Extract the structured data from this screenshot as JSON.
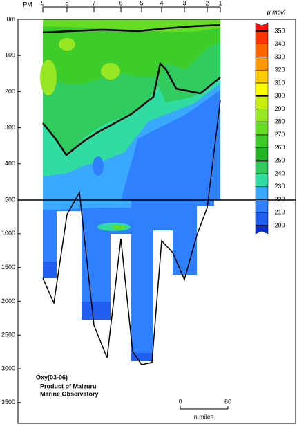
{
  "chart_data": {
    "type": "contour",
    "title": "Oxy(03-06)",
    "subtitle": [
      "Product of Maizuru",
      "Marine Observatory"
    ],
    "x_label": "PM",
    "categories": [
      "9",
      "8",
      "7",
      "6",
      "5",
      "4",
      "3",
      "2",
      "1"
    ],
    "ylim": [
      0,
      3500
    ],
    "yticks": [
      {
        "value": 0,
        "label": "0m"
      },
      100,
      200,
      300,
      400,
      500,
      1000,
      1500,
      2000,
      2500,
      3000,
      3500
    ],
    "colorbar": {
      "label": "μ mol/l",
      "levels": [
        200,
        210,
        220,
        230,
        240,
        250,
        260,
        270,
        280,
        290,
        300,
        310,
        320,
        330,
        340,
        350
      ],
      "colors": [
        "#0a2fd0",
        "#1f5ef0",
        "#2f80ff",
        "#3aa8ff",
        "#30dca0",
        "#30cc60",
        "#22b422",
        "#3ecc2a",
        "#66dd22",
        "#99e622",
        "#c8ee10",
        "#ffff00",
        "#ffcc00",
        "#ff9900",
        "#ff6600",
        "#ff3300",
        "#ff1010"
      ]
    },
    "scale_bar": {
      "ticks": [
        0,
        60
      ],
      "label": "n.miles"
    }
  }
}
